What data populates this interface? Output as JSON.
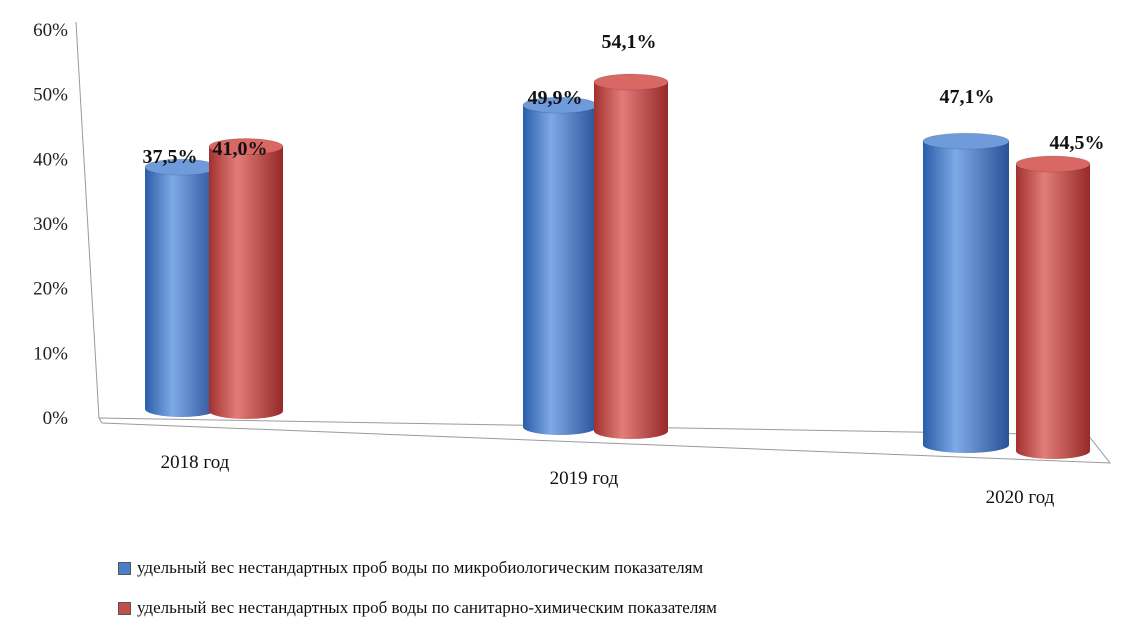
{
  "chart_data": {
    "type": "bar",
    "title": "",
    "xlabel": "",
    "ylabel": "",
    "categories": [
      "2018 год",
      "2019 год",
      "2020 год"
    ],
    "ylim": [
      0,
      60
    ],
    "yticks": [
      "0%",
      "10%",
      "20%",
      "30%",
      "40%",
      "50%",
      "60%"
    ],
    "series": [
      {
        "name": "удельный вес нестандартных проб воды по микробиологическим показателям",
        "values": [
          37.5,
          49.9,
          47.1
        ],
        "labels": [
          "37,5%",
          "49,9%",
          "47,1%"
        ],
        "color": "#4A7EC8"
      },
      {
        "name": "удельный вес нестандартных проб воды по санитарно-химическим показателям",
        "values": [
          41.0,
          54.1,
          44.5
        ],
        "labels": [
          "41,0%",
          "54,1%",
          "44,5%"
        ],
        "color": "#C0504D"
      }
    ],
    "legend_position": "bottom"
  }
}
